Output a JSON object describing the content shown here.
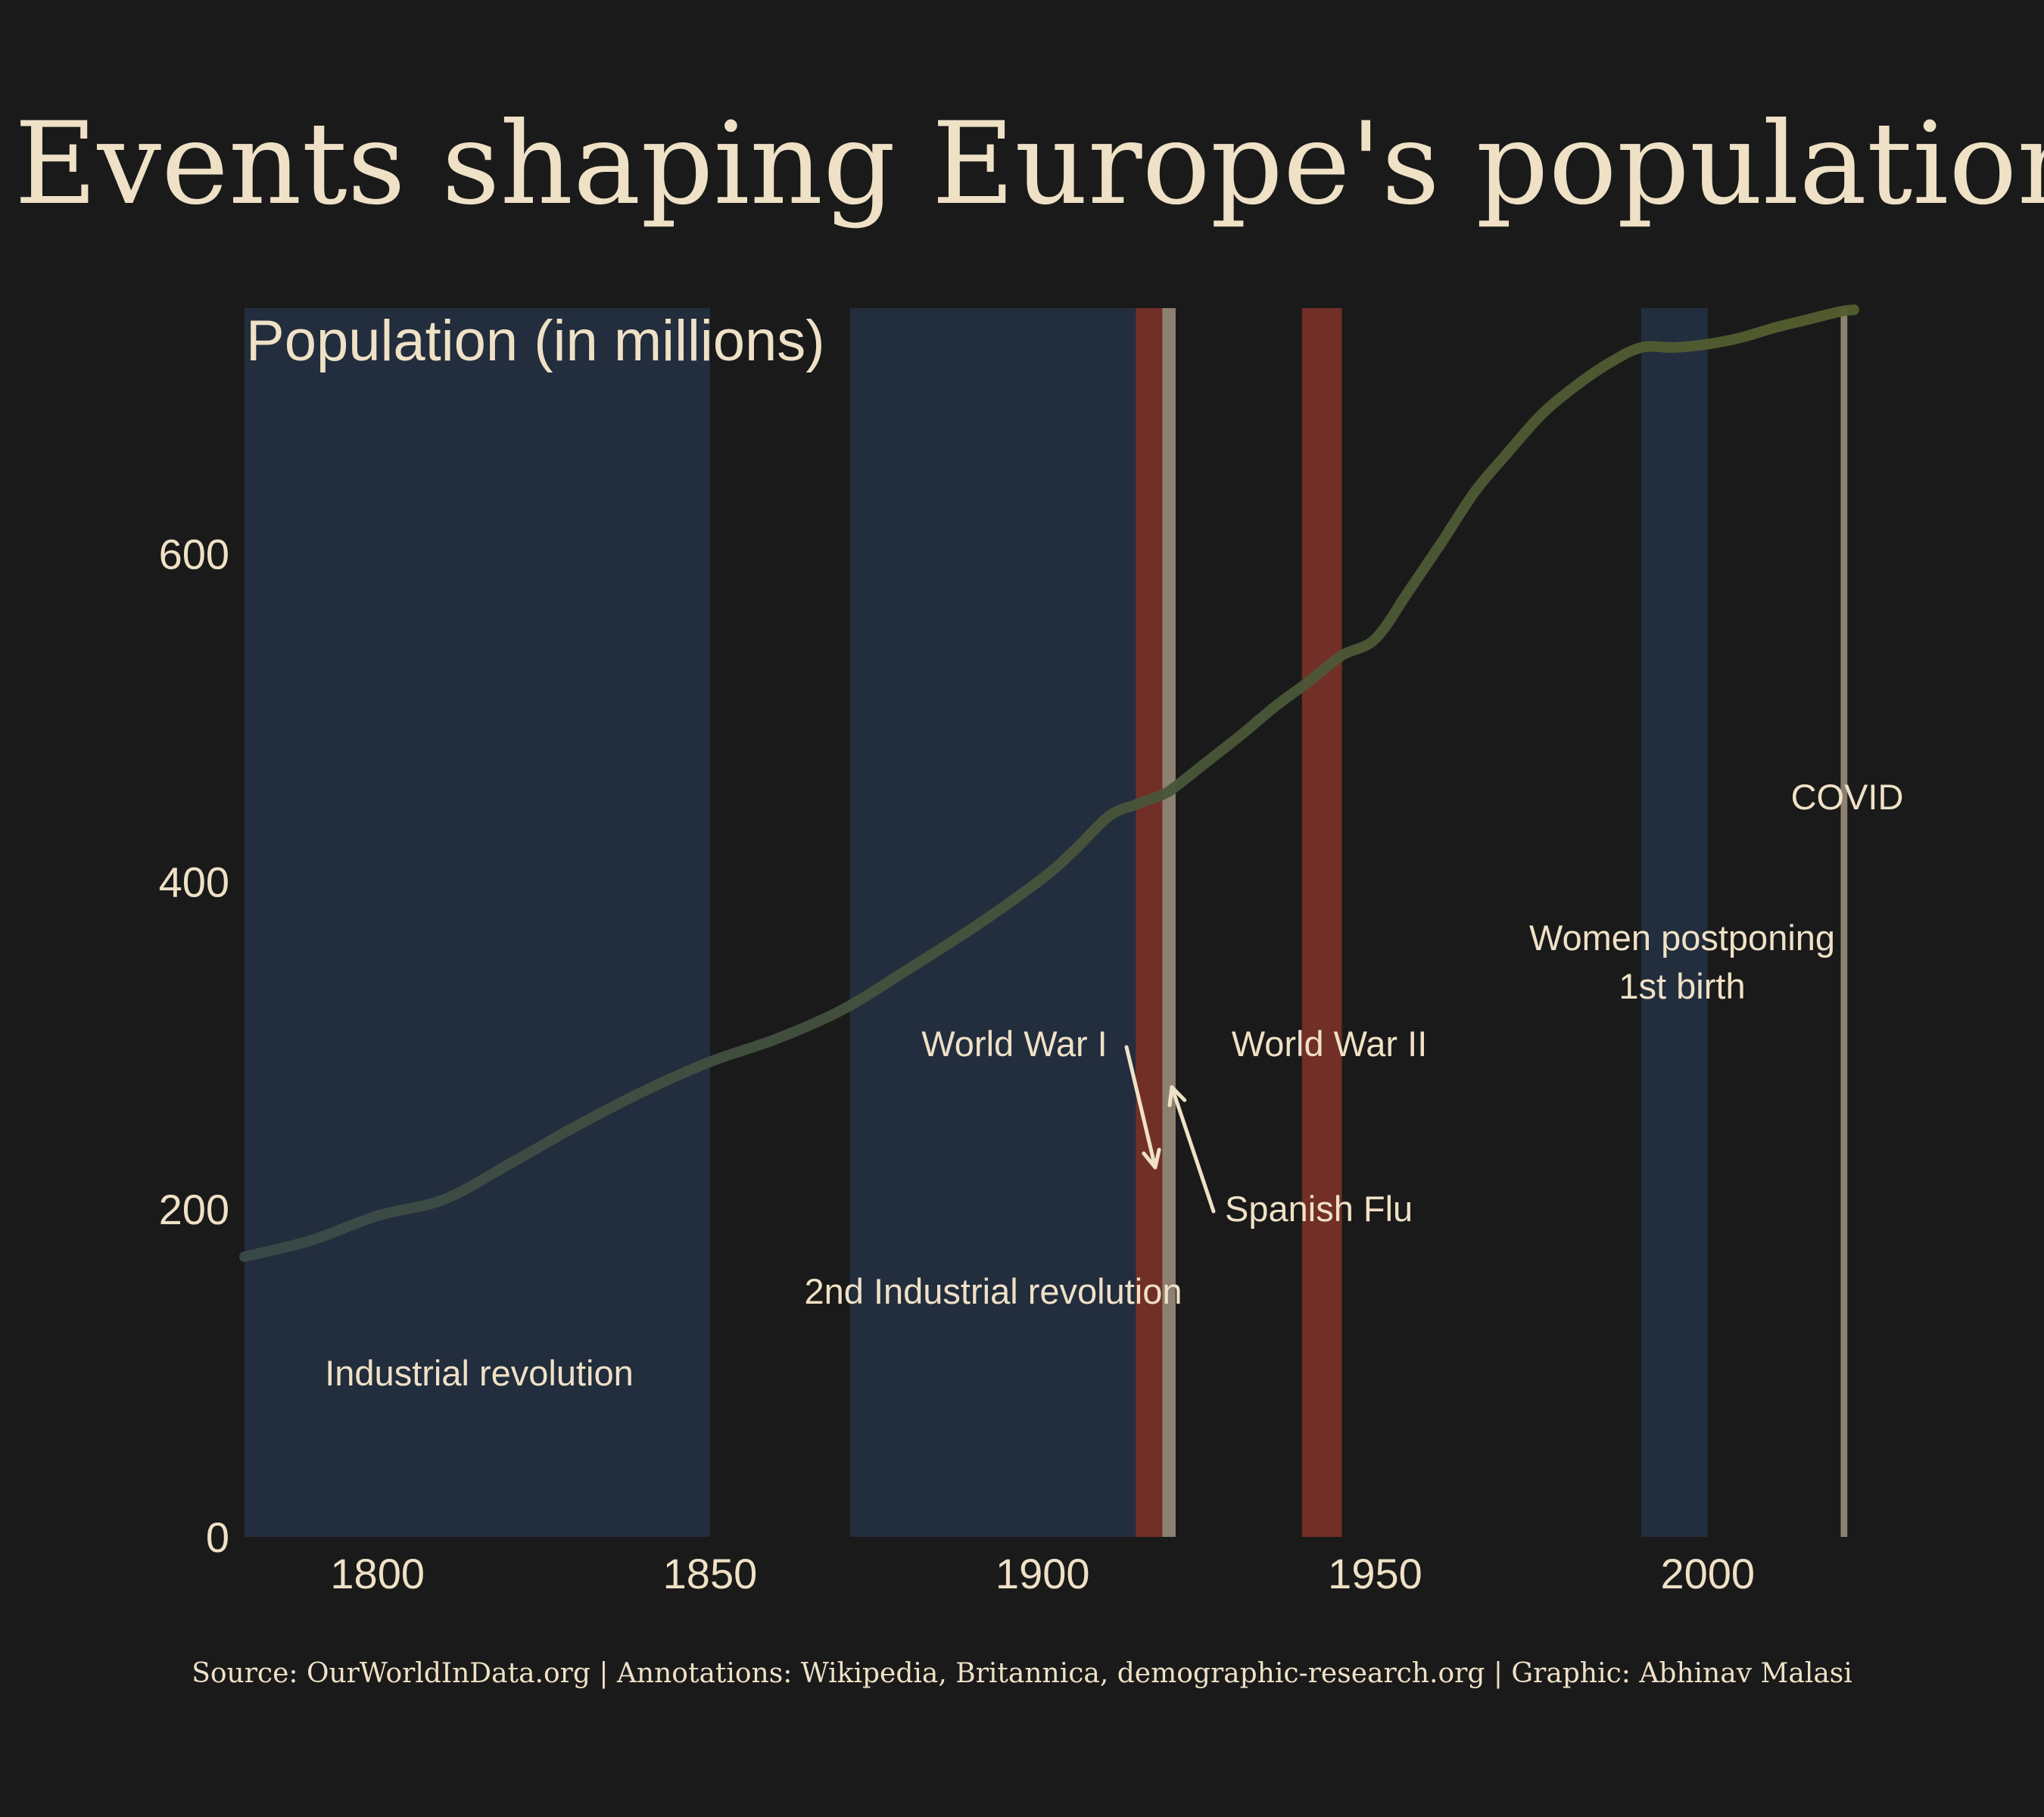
{
  "chart_data": {
    "type": "line",
    "title": "Events shaping Europe's population",
    "ylabel": "Population (in millions)",
    "xlabel": "",
    "xlim": [
      1780,
      2022
    ],
    "ylim": [
      0,
      750
    ],
    "x_ticks": [
      1800,
      1850,
      1900,
      1950,
      2000
    ],
    "y_ticks": [
      0,
      200,
      400,
      600
    ],
    "grid": false,
    "source": "Source: OurWorldInData.org | Annotations: Wikipedia, Britannica, demographic-research.org | Graphic: Abhinav Malasi",
    "series": [
      {
        "x": [
          1780,
          1790,
          1800,
          1810,
          1820,
          1830,
          1840,
          1850,
          1860,
          1870,
          1880,
          1890,
          1900,
          1905,
          1910,
          1914,
          1918,
          1920,
          1925,
          1930,
          1935,
          1940,
          1945,
          1950,
          1955,
          1960,
          1965,
          1970,
          1975,
          1980,
          1985,
          1990,
          1995,
          2000,
          2005,
          2010,
          2015,
          2020,
          2022
        ],
        "y": [
          171,
          181,
          196,
          206,
          228,
          251,
          272,
          290,
          304,
          322,
          347,
          373,
          402,
          420,
          440,
          447,
          453,
          458,
          474,
          490,
          507,
          522,
          538,
          548,
          577,
          607,
          638,
          662,
          685,
          702,
          716,
          726,
          726,
          728,
          732,
          738,
          743,
          748,
          749
        ]
      }
    ],
    "spans": [
      {
        "label": "Industrial revolution",
        "start": 1780,
        "end": 1850,
        "kind": "era"
      },
      {
        "label": "2nd Industrial revolution",
        "start": 1871,
        "end": 1914,
        "kind": "era"
      },
      {
        "label": "World War I",
        "start": 1914,
        "end": 1918,
        "kind": "war"
      },
      {
        "label": "Spanish Flu",
        "start": 1918,
        "end": 1920,
        "kind": "flu"
      },
      {
        "label": "World War II",
        "start": 1939,
        "end": 1945,
        "kind": "war"
      },
      {
        "label": "Women postponing\n1st birth",
        "start": 1990,
        "end": 2000,
        "kind": "era"
      },
      {
        "label": "COVID",
        "start": 2020,
        "end": 2021,
        "kind": "flu"
      }
    ],
    "colors": {
      "background": "#1a1a1a",
      "text": "#efe1c6",
      "era_band": "#222d3d",
      "war_band": "#722f27",
      "flu_band": "#8c8170",
      "line_early": "#3a4a48",
      "line_late": "#545e2e"
    }
  }
}
